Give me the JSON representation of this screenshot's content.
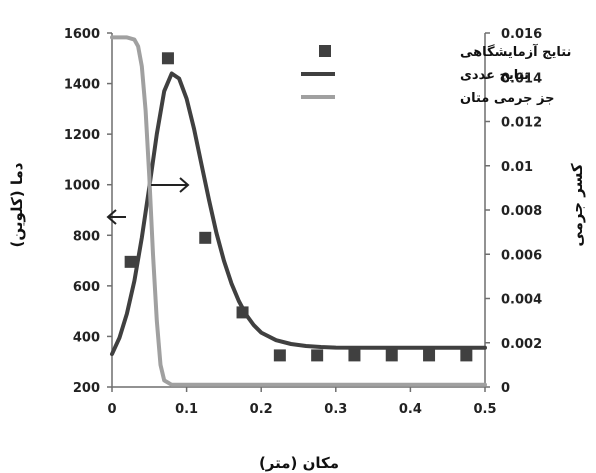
{
  "chart_data": {
    "type": "line",
    "xlabel": "مکان (متر)",
    "ylabel": "دما (کلوین)",
    "y2label": "کسر جرمی",
    "xlim": [
      0,
      0.5
    ],
    "ylim": [
      200,
      1600
    ],
    "y2lim": [
      0,
      0.016
    ],
    "xticks": [
      "0",
      "0.1",
      "0.2",
      "0.3",
      "0.4",
      "0.5"
    ],
    "yticks": [
      "200",
      "400",
      "600",
      "800",
      "1000",
      "1200",
      "1400",
      "1600"
    ],
    "y2ticks": [
      "0",
      "0.002",
      "0.004",
      "0.006",
      "0.008",
      "0.01",
      "0.012",
      "0.014",
      "0.016"
    ],
    "grid": false,
    "legend_position": "top-right",
    "series": [
      {
        "name": "نتایج آزمایشگاهی",
        "kind": "scatter",
        "axis": "left",
        "color": "#404040",
        "x": [
          0.025,
          0.075,
          0.125,
          0.175,
          0.225,
          0.275,
          0.325,
          0.375,
          0.425,
          0.475
        ],
        "y": [
          695,
          1500,
          790,
          495,
          325,
          325,
          325,
          325,
          325,
          325
        ]
      },
      {
        "name": "نتایج عددی",
        "kind": "line",
        "axis": "left",
        "color": "#404040",
        "x": [
          0,
          0.01,
          0.02,
          0.03,
          0.04,
          0.05,
          0.06,
          0.07,
          0.08,
          0.09,
          0.1,
          0.11,
          0.12,
          0.13,
          0.14,
          0.15,
          0.16,
          0.17,
          0.18,
          0.19,
          0.2,
          0.22,
          0.24,
          0.26,
          0.28,
          0.3,
          0.35,
          0.4,
          0.45,
          0.5
        ],
        "y": [
          330,
          395,
          490,
          620,
          790,
          990,
          1200,
          1370,
          1440,
          1420,
          1340,
          1220,
          1080,
          940,
          810,
          700,
          610,
          540,
          485,
          445,
          415,
          385,
          370,
          362,
          358,
          356,
          355,
          355,
          355,
          355
        ]
      },
      {
        "name": "جز جرمی متان",
        "kind": "line",
        "axis": "right",
        "color": "#a0a0a0",
        "x": [
          0,
          0.02,
          0.03,
          0.035,
          0.04,
          0.045,
          0.05,
          0.055,
          0.06,
          0.065,
          0.07,
          0.08,
          0.1,
          0.2,
          0.3,
          0.4,
          0.5
        ],
        "y": [
          0.0158,
          0.0158,
          0.0157,
          0.0154,
          0.0145,
          0.0125,
          0.0095,
          0.006,
          0.003,
          0.001,
          0.0003,
          0.0001,
          0.0001,
          0.0001,
          0.0001,
          0.0001,
          0.0001
        ]
      }
    ],
    "colors": {
      "axis": "#6e6e6e",
      "text": "#222222"
    }
  }
}
